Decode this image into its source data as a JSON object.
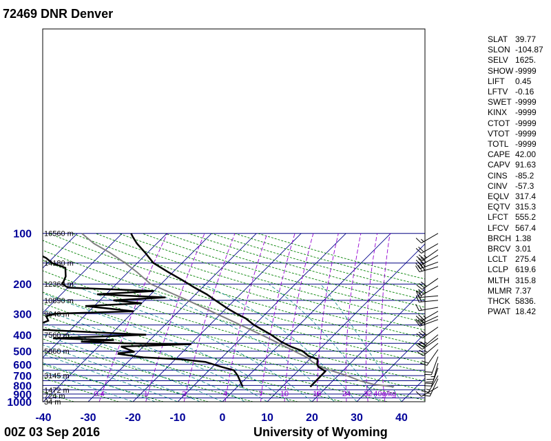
{
  "header": {
    "title": "72469 DNR Denver"
  },
  "footer": {
    "datetime": "00Z 03 Sep 2016",
    "source": "University of Wyoming"
  },
  "chart_data": {
    "type": "skew-t",
    "pressure_levels": [
      100,
      200,
      300,
      400,
      500,
      600,
      700,
      800,
      900,
      1000
    ],
    "temperature_ticks": [
      -40,
      -30,
      -20,
      -10,
      0,
      10,
      20,
      30,
      40
    ],
    "height_labels": [
      {
        "p": 100,
        "label": "16560 m"
      },
      {
        "p": 150,
        "label": "14180 m"
      },
      {
        "p": 200,
        "label": "12360 m"
      },
      {
        "p": 250,
        "label": "10890 m"
      },
      {
        "p": 300,
        "label": "9640 m"
      },
      {
        "p": 400,
        "label": "7560 m"
      },
      {
        "p": 500,
        "label": "5860 m"
      },
      {
        "p": 700,
        "label": "3145 m"
      },
      {
        "p": 850,
        "label": "1472 m"
      },
      {
        "p": 925,
        "label": "724 m"
      },
      {
        "p": 1000,
        "label": "34 m"
      }
    ],
    "mixing_ratio_labels": [
      "0.4",
      "1",
      "2",
      "4",
      "7",
      "10",
      "16",
      "24",
      "32",
      "40g/kg"
    ],
    "temperature_profile": [
      {
        "p": 816,
        "t": 16.3
      },
      {
        "p": 700,
        "t": 16.2
      },
      {
        "p": 660,
        "t": 16.2
      },
      {
        "p": 620,
        "t": 13.6
      },
      {
        "p": 600,
        "t": 12.8
      },
      {
        "p": 560,
        "t": 11.8
      },
      {
        "p": 535,
        "t": 9.0
      },
      {
        "p": 500,
        "t": 6.6
      },
      {
        "p": 470,
        "t": 2.9
      },
      {
        "p": 440,
        "t": -0.3
      },
      {
        "p": 400,
        "t": -4.1
      },
      {
        "p": 350,
        "t": -10.1
      },
      {
        "p": 320,
        "t": -13.4
      },
      {
        "p": 300,
        "t": -16.5
      },
      {
        "p": 280,
        "t": -19.6
      },
      {
        "p": 250,
        "t": -24.2
      },
      {
        "p": 230,
        "t": -27.5
      },
      {
        "p": 210,
        "t": -31.7
      },
      {
        "p": 190,
        "t": -36.0
      },
      {
        "p": 170,
        "t": -41.0
      },
      {
        "p": 150,
        "t": -46.4
      },
      {
        "p": 130,
        "t": -50.6
      },
      {
        "p": 115,
        "t": -54.4
      },
      {
        "p": 105,
        "t": -56.8
      },
      {
        "p": 100,
        "t": -58.0
      }
    ],
    "dewpoint_profile": [
      {
        "p": 816,
        "t": 1.2
      },
      {
        "p": 700,
        "t": -2.4
      },
      {
        "p": 650,
        "t": -4.5
      },
      {
        "p": 620,
        "t": -8.1
      },
      {
        "p": 580,
        "t": -12.7
      },
      {
        "p": 560,
        "t": -18.6
      },
      {
        "p": 545,
        "t": -27.6
      },
      {
        "p": 520,
        "t": -33.9
      },
      {
        "p": 515,
        "t": -34.0
      },
      {
        "p": 505,
        "t": -30.8
      },
      {
        "p": 490,
        "t": -32.6
      },
      {
        "p": 470,
        "t": -35.0
      },
      {
        "p": 455,
        "t": -19.8
      },
      {
        "p": 450,
        "t": -35.0
      },
      {
        "p": 440,
        "t": -45.0
      },
      {
        "p": 430,
        "t": -38.0
      },
      {
        "p": 420,
        "t": -52.0
      },
      {
        "p": 400,
        "t": -32.0
      },
      {
        "p": 370,
        "t": -60.0
      },
      {
        "p": 330,
        "t": -57.0
      },
      {
        "p": 310,
        "t": -58.5
      },
      {
        "p": 300,
        "t": -57.0
      },
      {
        "p": 290,
        "t": -40.0
      },
      {
        "p": 270,
        "t": -52.0
      },
      {
        "p": 260,
        "t": -40.0
      },
      {
        "p": 250,
        "t": -47.0
      },
      {
        "p": 240,
        "t": -36.0
      },
      {
        "p": 230,
        "t": -52.0
      },
      {
        "p": 220,
        "t": -40.0
      },
      {
        "p": 210,
        "t": -60.0
      },
      {
        "p": 200,
        "t": -62.0
      },
      {
        "p": 180,
        "t": -63.0
      },
      {
        "p": 160,
        "t": -65.0
      },
      {
        "p": 150,
        "t": -69.0
      },
      {
        "p": 140,
        "t": -71.5
      },
      {
        "p": 125,
        "t": -77.0
      },
      {
        "p": 115,
        "t": -80.0
      },
      {
        "p": 105,
        "t": -85.0
      },
      {
        "p": 101,
        "t": -87.0
      },
      {
        "p": 100,
        "t": -88.0
      }
    ],
    "parcel_profile": [
      {
        "p": 816,
        "t": 35.0
      },
      {
        "p": 790,
        "t": 30.0
      },
      {
        "p": 750,
        "t": 26.0
      },
      {
        "p": 700,
        "t": 22.0
      },
      {
        "p": 650,
        "t": 17.0
      },
      {
        "p": 619.6,
        "t": 14.1
      },
      {
        "p": 580,
        "t": 11.2
      },
      {
        "p": 550,
        "t": 9.4
      },
      {
        "p": 500,
        "t": 4.7
      },
      {
        "p": 450,
        "t": -0.4
      },
      {
        "p": 400,
        "t": -6.3
      },
      {
        "p": 350,
        "t": -13.1
      },
      {
        "p": 300,
        "t": -21.0
      },
      {
        "p": 250,
        "t": -30.4
      },
      {
        "p": 200,
        "t": -42.3
      },
      {
        "p": 170,
        "t": -48.0
      },
      {
        "p": 150,
        "t": -52.7
      },
      {
        "p": 130,
        "t": -58.5
      },
      {
        "p": 115,
        "t": -64.0
      },
      {
        "p": 100,
        "t": -69.0
      }
    ],
    "wind_barbs": [
      {
        "p": 100,
        "dir": 240,
        "spd": 15
      },
      {
        "p": 115,
        "dir": 240,
        "spd": 20
      },
      {
        "p": 125,
        "dir": 235,
        "spd": 25
      },
      {
        "p": 135,
        "dir": 240,
        "spd": 30
      },
      {
        "p": 148,
        "dir": 250,
        "spd": 30
      },
      {
        "p": 158,
        "dir": 255,
        "spd": 30
      },
      {
        "p": 185,
        "dir": 235,
        "spd": 30
      },
      {
        "p": 205,
        "dir": 240,
        "spd": 25
      },
      {
        "p": 235,
        "dir": 265,
        "spd": 20
      },
      {
        "p": 250,
        "dir": 265,
        "spd": 20
      },
      {
        "p": 275,
        "dir": 260,
        "spd": 15
      },
      {
        "p": 290,
        "dir": 240,
        "spd": 25
      },
      {
        "p": 310,
        "dir": 245,
        "spd": 30
      },
      {
        "p": 325,
        "dir": 250,
        "spd": 30
      },
      {
        "p": 360,
        "dir": 235,
        "spd": 30
      },
      {
        "p": 400,
        "dir": 230,
        "spd": 25
      },
      {
        "p": 420,
        "dir": 235,
        "spd": 30
      },
      {
        "p": 450,
        "dir": 230,
        "spd": 25
      },
      {
        "p": 490,
        "dir": 215,
        "spd": 20
      },
      {
        "p": 540,
        "dir": 200,
        "spd": 20
      },
      {
        "p": 590,
        "dir": 195,
        "spd": 25
      },
      {
        "p": 630,
        "dir": 200,
        "spd": 20
      },
      {
        "p": 700,
        "dir": 210,
        "spd": 15
      },
      {
        "p": 730,
        "dir": 205,
        "spd": 15
      },
      {
        "p": 816,
        "dir": 240,
        "spd": 10
      }
    ],
    "stability_indices": [
      {
        "key": "SLAT",
        "value": "39.77"
      },
      {
        "key": "SLON",
        "value": "-104.87"
      },
      {
        "key": "SELV",
        "value": "1625."
      },
      {
        "key": "SHOW",
        "value": "-9999"
      },
      {
        "key": "LIFT",
        "value": "0.45"
      },
      {
        "key": "LFTV",
        "value": "-0.16"
      },
      {
        "key": "SWET",
        "value": "-9999"
      },
      {
        "key": "KINX",
        "value": "-9999"
      },
      {
        "key": "CTOT",
        "value": "-9999"
      },
      {
        "key": "VTOT",
        "value": "-9999"
      },
      {
        "key": "TOTL",
        "value": "-9999"
      },
      {
        "key": "CAPE",
        "value": "42.00"
      },
      {
        "key": "CAPV",
        "value": "91.63"
      },
      {
        "key": "CINS",
        "value": "-85.2"
      },
      {
        "key": "CINV",
        "value": "-57.3"
      },
      {
        "key": "EQLV",
        "value": "317.4"
      },
      {
        "key": "EQTV",
        "value": "315.3"
      },
      {
        "key": "LFCT",
        "value": "555.2"
      },
      {
        "key": "LFCV",
        "value": "567.4"
      },
      {
        "key": "BRCH",
        "value": "1.38"
      },
      {
        "key": "BRCV",
        "value": "3.01"
      },
      {
        "key": "LCLT",
        "value": "275.4"
      },
      {
        "key": "LCLP",
        "value": "619.6"
      },
      {
        "key": "MLTH",
        "value": "315.8"
      },
      {
        "key": "MLMR",
        "value": "7.37"
      },
      {
        "key": "THCK",
        "value": "5836."
      },
      {
        "key": "PWAT",
        "value": "18.42"
      }
    ],
    "colors": {
      "isobar": "#000080",
      "isotherm": "#00008b",
      "dry_adiabat": "#008000",
      "moist_adiabat": "#008080",
      "mixing_ratio": "#9400d3",
      "axis_label": "#000099",
      "profile": "#000000",
      "parcel": "#808080"
    }
  }
}
